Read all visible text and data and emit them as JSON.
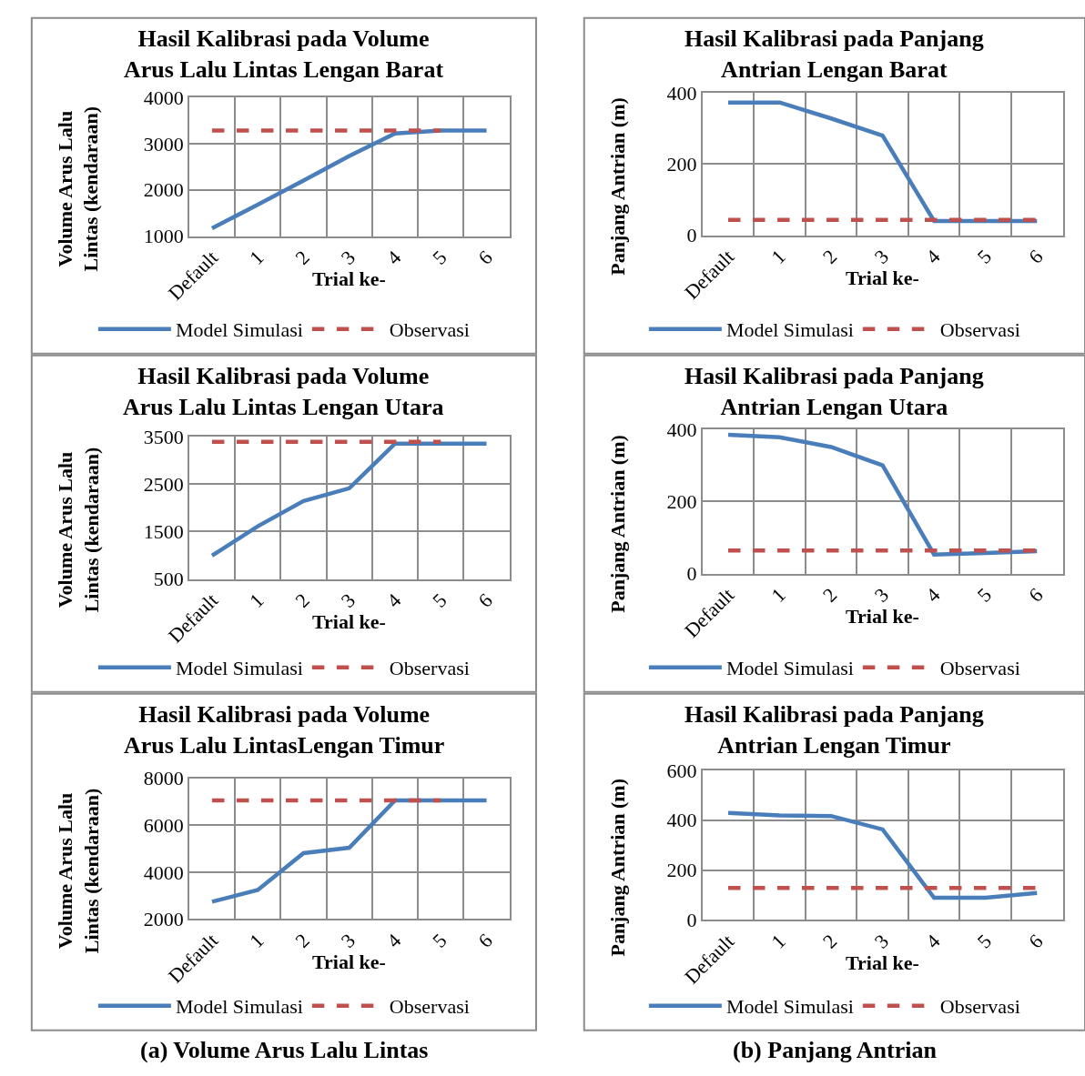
{
  "chart_data": [
    {
      "type": "line",
      "title": "Hasil Kalibrasi pada Volume\nArus Lalu Lintas Lengan Barat",
      "xlabel": "Trial ke-",
      "ylabel": "Volume Arus Lalu\nLintas (kendaraan)",
      "categories": [
        "Default",
        "1",
        "2",
        "3",
        "4",
        "5",
        "6"
      ],
      "ylim": [
        1000,
        4000
      ],
      "yticks": [
        1000,
        2000,
        3000,
        4000
      ],
      "grid": true,
      "legend": "bottom",
      "marker": "none",
      "series": [
        {
          "name": "Model Simulasi",
          "color": "#4a7ebb",
          "line_style": "solid",
          "values": [
            1170,
            1680,
            2200,
            2730,
            3220,
            3280,
            3280
          ]
        },
        {
          "name": "Observasi",
          "color": "#c0504d",
          "line_style": "dashed",
          "values": [
            3280,
            3280,
            3280,
            3280,
            3280,
            3280,
            null
          ]
        }
      ]
    },
    {
      "type": "line",
      "title": "Hasil Kalibrasi pada Panjang\nAntrian Lengan Barat",
      "xlabel": "Trial ke-",
      "ylabel": "Panjang Antrian (m)",
      "categories": [
        "Default",
        "1",
        "2",
        "3",
        "4",
        "5",
        "6"
      ],
      "ylim": [
        0,
        400
      ],
      "yticks": [
        0,
        200,
        400
      ],
      "grid": true,
      "legend": "bottom",
      "marker": "none",
      "series": [
        {
          "name": "Model Simulasi",
          "color": "#4a7ebb",
          "line_style": "solid",
          "values": [
            373,
            373,
            328,
            280,
            40,
            40,
            40
          ]
        },
        {
          "name": "Observasi",
          "color": "#c0504d",
          "line_style": "dashed",
          "values": [
            43,
            43,
            43,
            43,
            43,
            43,
            43
          ]
        }
      ]
    },
    {
      "type": "line",
      "title": "Hasil Kalibrasi pada Volume\nArus Lalu Lintas Lengan Utara",
      "xlabel": "Trial ke-",
      "ylabel": "Volume Arus Lalu\nLintas (kendaraan)",
      "categories": [
        "Default",
        "1",
        "2",
        "3",
        "4",
        "5",
        "6"
      ],
      "ylim": [
        500,
        3500
      ],
      "yticks": [
        500,
        1500,
        2500,
        3500
      ],
      "grid": true,
      "legend": "bottom",
      "marker": "none",
      "series": [
        {
          "name": "Model Simulasi",
          "color": "#4a7ebb",
          "line_style": "solid",
          "values": [
            990,
            1610,
            2140,
            2410,
            3350,
            3350,
            3350
          ]
        },
        {
          "name": "Observasi",
          "color": "#c0504d",
          "line_style": "dashed",
          "values": [
            3390,
            3390,
            3390,
            3390,
            3390,
            3390,
            null
          ]
        }
      ]
    },
    {
      "type": "line",
      "title": "Hasil Kalibrasi pada Panjang\nAntrian Lengan Utara",
      "xlabel": "Trial ke-",
      "ylabel": "Panjang Antrian (m)",
      "categories": [
        "Default",
        "1",
        "2",
        "3",
        "4",
        "5",
        "6"
      ],
      "ylim": [
        0,
        400
      ],
      "yticks": [
        0,
        200,
        400
      ],
      "grid": true,
      "legend": "bottom",
      "marker": "none",
      "series": [
        {
          "name": "Model Simulasi",
          "color": "#4a7ebb",
          "line_style": "solid",
          "values": [
            385,
            378,
            351,
            300,
            53,
            57,
            62
          ]
        },
        {
          "name": "Observasi",
          "color": "#c0504d",
          "line_style": "dashed",
          "values": [
            64,
            64,
            64,
            64,
            64,
            64,
            64
          ]
        }
      ]
    },
    {
      "type": "line",
      "title": "Hasil Kalibrasi pada Volume\nArus Lalu LintasLengan Timur",
      "xlabel": "Trial ke-",
      "ylabel": "Volume Arus Lalu\nLintas (kendaraan)",
      "categories": [
        "Default",
        "1",
        "2",
        "3",
        "4",
        "5",
        "6"
      ],
      "ylim": [
        2000,
        8000
      ],
      "yticks": [
        2000,
        4000,
        6000,
        8000
      ],
      "grid": true,
      "legend": "bottom",
      "marker": "none",
      "annotations": [
        "(a) Volume Arus Lalu Lintas"
      ],
      "series": [
        {
          "name": "Model Simulasi",
          "color": "#4a7ebb",
          "line_style": "solid",
          "values": [
            2740,
            3240,
            4810,
            5040,
            7060,
            7060,
            7060
          ]
        },
        {
          "name": "Observasi",
          "color": "#c0504d",
          "line_style": "dashed",
          "values": [
            7060,
            7060,
            7060,
            7060,
            7060,
            7060,
            null
          ]
        }
      ]
    },
    {
      "type": "line",
      "title": "Hasil Kalibrasi pada Panjang\nAntrian Lengan Timur",
      "xlabel": "Trial ke-",
      "ylabel": "Panjang Antrian (m)",
      "categories": [
        "Default",
        "1",
        "2",
        "3",
        "4",
        "5",
        "6"
      ],
      "ylim": [
        0,
        600
      ],
      "yticks": [
        0,
        200,
        400,
        600
      ],
      "grid": true,
      "legend": "bottom",
      "marker": "none",
      "annotations": [
        "(b) Panjang Antrian"
      ],
      "series": [
        {
          "name": "Model Simulasi",
          "color": "#4a7ebb",
          "line_style": "solid",
          "values": [
            429,
            419,
            417,
            363,
            89,
            89,
            108
          ]
        },
        {
          "name": "Observasi",
          "color": "#c0504d",
          "line_style": "dashed",
          "values": [
            128,
            128,
            128,
            128,
            128,
            128,
            128
          ]
        }
      ]
    }
  ]
}
